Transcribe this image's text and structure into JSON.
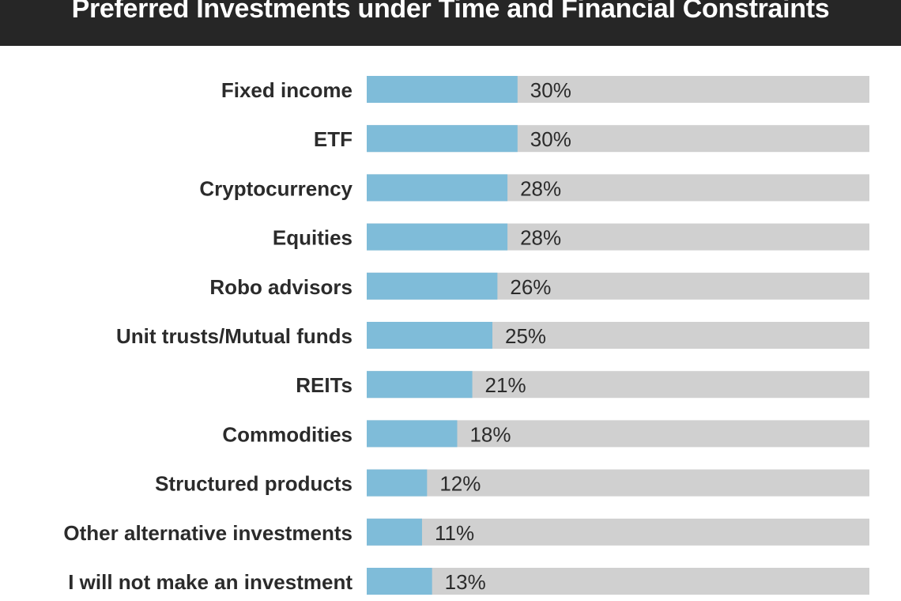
{
  "chart_data": {
    "type": "bar",
    "orientation": "horizontal",
    "title": "Preferred Investments under Time and Financial Constraints",
    "categories": [
      "Fixed income",
      "ETF",
      "Cryptocurrency",
      "Equities",
      "Robo advisors",
      "Unit trusts/Mutual funds",
      "REITs",
      "Commodities",
      "Structured products",
      "Other alternative investments",
      "I will not make an investment"
    ],
    "values": [
      30,
      30,
      28,
      28,
      26,
      25,
      21,
      18,
      12,
      11,
      13
    ],
    "value_labels": [
      "30%",
      "30%",
      "28%",
      "28%",
      "26%",
      "25%",
      "21%",
      "18%",
      "12%",
      "11%",
      "13%"
    ],
    "unit": "%",
    "xlim": [
      0,
      100
    ],
    "colors": {
      "bar": "#7fbcd9",
      "track": "#d0d0d0",
      "title_bg": "#262626",
      "text": "#2b2b2b"
    },
    "grid": false,
    "legend": "none"
  }
}
